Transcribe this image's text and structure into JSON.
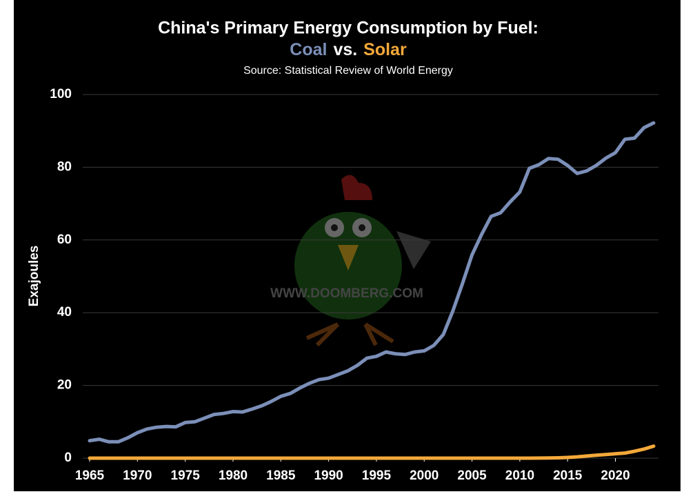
{
  "chart_data": {
    "type": "line",
    "title": "China's Primary Energy Consumption by Fuel:",
    "title_line2": [
      "Coal",
      "vs.",
      "Solar"
    ],
    "source": "Source: Statistical Review of World Energy",
    "watermark": "WWW.DOOMBERG.COM",
    "y_label": "Exajoules",
    "x": [
      1965,
      1966,
      1967,
      1968,
      1969,
      1970,
      1971,
      1972,
      1973,
      1974,
      1975,
      1976,
      1977,
      1978,
      1979,
      1980,
      1981,
      1982,
      1983,
      1984,
      1985,
      1986,
      1987,
      1988,
      1989,
      1990,
      1991,
      1992,
      1993,
      1994,
      1995,
      1996,
      1997,
      1998,
      1999,
      2000,
      2001,
      2002,
      2003,
      2004,
      2005,
      2006,
      2007,
      2008,
      2009,
      2010,
      2011,
      2012,
      2013,
      2014,
      2015,
      2016,
      2017,
      2018,
      2019,
      2020,
      2021,
      2022,
      2023,
      2024
    ],
    "series": [
      {
        "name": "Coal",
        "color": "#7b8fb8",
        "values": [
          4.8,
          5.2,
          4.5,
          4.5,
          5.6,
          7.0,
          8.0,
          8.5,
          8.7,
          8.6,
          9.8,
          10.0,
          11.0,
          12.0,
          12.3,
          12.8,
          12.7,
          13.5,
          14.4,
          15.6,
          17.0,
          17.8,
          19.3,
          20.6,
          21.6,
          22.0,
          23.0,
          24.0,
          25.5,
          27.5,
          28.0,
          29.2,
          28.7,
          28.5,
          29.2,
          29.5,
          31.0,
          34.0,
          40.5,
          48.0,
          55.9,
          61.5,
          66.5,
          67.5,
          70.5,
          73.2,
          79.7,
          80.7,
          82.4,
          82.2,
          80.5,
          78.3,
          79.0,
          80.5,
          82.5,
          84.0,
          87.7,
          88.0,
          90.9,
          92.2
        ]
      },
      {
        "name": "Solar",
        "color": "#f4a93a",
        "values": [
          0,
          0,
          0,
          0,
          0,
          0,
          0,
          0,
          0,
          0,
          0,
          0,
          0,
          0,
          0,
          0,
          0,
          0,
          0,
          0,
          0,
          0,
          0,
          0,
          0,
          0,
          0,
          0,
          0,
          0,
          0,
          0,
          0,
          0,
          0,
          0,
          0,
          0,
          0,
          0,
          0,
          0,
          0,
          0,
          0,
          0,
          0.01,
          0.03,
          0.05,
          0.1,
          0.2,
          0.35,
          0.6,
          0.8,
          1.0,
          1.2,
          1.4,
          1.9,
          2.5,
          3.3
        ]
      }
    ],
    "xlim": [
      1965,
      2024
    ],
    "xticks": [
      1965,
      1970,
      1975,
      1980,
      1985,
      1990,
      1995,
      2000,
      2005,
      2010,
      2015,
      2020
    ],
    "ylim": [
      0,
      100
    ],
    "yticks": [
      0,
      20,
      40,
      60,
      80,
      100
    ],
    "grid": true
  }
}
